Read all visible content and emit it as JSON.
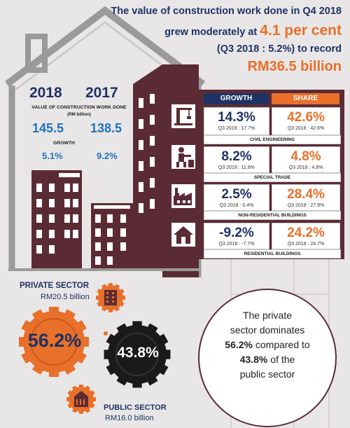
{
  "headline": {
    "line1": "The value of construction work done in Q4 2018",
    "line2_prefix": "grew moderately at ",
    "line2_highlight": "4.1 per cent",
    "line3": "(Q3 2018 : 5.2%) to record",
    "line4": "RM36.5 billion"
  },
  "summary": {
    "year_current": "2018",
    "year_previous": "2017",
    "value_label": "VALUE OF  CONSTRUCTION WORK DONE",
    "value_unit": "(RM billion)",
    "value_current": "145.5",
    "value_previous": "138.5",
    "growth_label": "GROWTH",
    "growth_current": "5.1%",
    "growth_previous": "9.2%"
  },
  "table": {
    "growth_header": "GROWTH",
    "share_header": "SHARE",
    "rows": [
      {
        "category": "CIVIL ENGINEERING",
        "icon": "civil-engineering-icon",
        "growth": "14.3%",
        "growth_q3": "Q3 2018 : 17.7%",
        "share": "42.6%",
        "share_q3": "Q3 2018 : 42.6%"
      },
      {
        "category": "SPECIAL TRADE",
        "icon": "special-trade-icon",
        "growth": "8.2%",
        "growth_q3": "Q3 2018 : 11.8%",
        "share": "4.8%",
        "share_q3": "Q3 2018 : 4.8%"
      },
      {
        "category": "NON-RESIDENTIAL BUILDINGS",
        "icon": "factory-icon",
        "growth": "2.5%",
        "growth_q3": "Q3 2018 : 0.4%",
        "share": "28.4%",
        "share_q3": "Q3 2018 : 27.9%"
      },
      {
        "category": "RESIDENTIAL BUILDINGS",
        "icon": "house-icon",
        "growth": "-9.2%",
        "growth_q3": "Q3 2018 : -7.7%",
        "share": "24.2%",
        "share_q3": "Q3 2018 : 24.7%"
      }
    ]
  },
  "private_sector": {
    "label": "PRIVATE SECTOR",
    "value": "RM20.5 billion",
    "share": "56.2%"
  },
  "public_sector": {
    "label": "PUBLIC SECTOR",
    "value": "RM16.0 billion",
    "share": "43.8%"
  },
  "comparison": {
    "line1": "The private",
    "line2": "sector dominates",
    "line3_highlight": "56.2%",
    "line3_rest": " compared to",
    "line4_highlight": "43.8%",
    "line4_rest": " of the",
    "line5": "public sector"
  },
  "colors": {
    "navy": "#1f3264",
    "orange": "#e8702a",
    "maroon": "#5b2b35",
    "blue": "#1e73be",
    "house_grey": "#9a9a9a"
  }
}
